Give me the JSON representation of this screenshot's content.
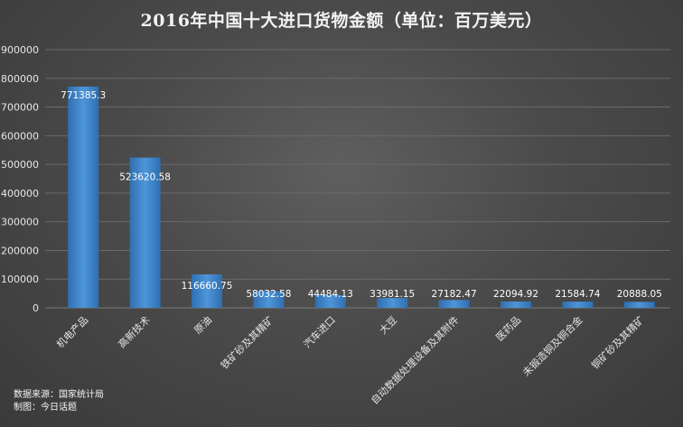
{
  "chart_data": {
    "type": "bar",
    "title": "2016年中国十大进口货物金额（单位：百万美元）",
    "categories": [
      "机电产品",
      "高新技术",
      "原油",
      "铁矿砂及其精矿",
      "汽车进口",
      "大豆",
      "自动数据处理设备及其附件",
      "医药品",
      "未锻造铜及铜合金",
      "铜矿砂及其精矿"
    ],
    "values": [
      771385.3,
      523620.58,
      116660.75,
      58032.58,
      44484.13,
      33981.15,
      27182.47,
      22094.92,
      21584.74,
      20888.05
    ],
    "value_labels": [
      "771385.3",
      "523620.58",
      "116660.75",
      "58032.58",
      "44484.13",
      "33981.15",
      "27182.47",
      "22094.92",
      "21584.74",
      "20888.05"
    ],
    "y_ticks": [
      "0",
      "100000",
      "200000",
      "300000",
      "400000",
      "500000",
      "600000",
      "700000",
      "800000",
      "900000"
    ],
    "ylim": [
      0,
      900000
    ],
    "grid": true,
    "legend": "none",
    "bar_color": "#4e95d9",
    "bar_color_dark": "#2f6fb0"
  },
  "footer": {
    "source": "数据来源：国家统计局",
    "maker": "制图：今日话题"
  }
}
